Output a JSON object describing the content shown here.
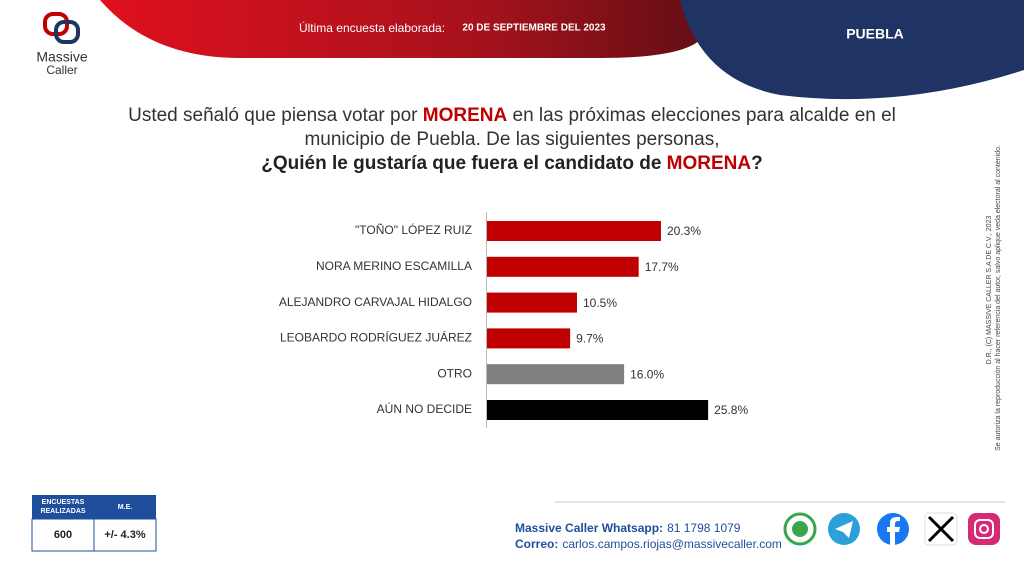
{
  "header": {
    "survey_label": "Última encuesta elaborada:",
    "survey_date": "20 DE SEPTIEMBRE DEL 2023",
    "region": "PUEBLA"
  },
  "logo": {
    "line1": "Massive",
    "line2": "Caller"
  },
  "chart_data": {
    "type": "bar",
    "orientation": "horizontal",
    "title_parts": [
      "Usted señaló que piensa votar por ",
      "MORENA",
      " en las próximas elecciones para alcalde en el",
      "municipio de Puebla.  De las siguientes personas,",
      "¿Quién le gustaría que fuera el candidato de ",
      "MORENA",
      "?"
    ],
    "categories": [
      "\"TOÑO\" LÓPEZ RUIZ",
      "NORA MERINO ESCAMILLA",
      "ALEJANDRO CARVAJAL HIDALGO",
      "LEOBARDO RODRÍGUEZ JUÁREZ",
      "OTRO",
      "AÚN NO DECIDE"
    ],
    "values": [
      20.3,
      17.7,
      10.5,
      9.7,
      16.0,
      25.8
    ],
    "value_labels": [
      "20.3%",
      "17.7%",
      "10.5%",
      "9.7%",
      "16.0%",
      "25.8%"
    ],
    "colors": [
      "#c00000",
      "#c00000",
      "#c00000",
      "#c00000",
      "#7f7f7f",
      "#000000"
    ]
  },
  "copyright": {
    "line1": "D.R., (C) MASSIVE CALLER S.A DE C.V., 2023",
    "line2": "Se autoriza la reproducción al hacer referencia del autor, salvo aplique veda electoral al contenido."
  },
  "sample_table": {
    "headers": [
      "ENCUESTAS REALIZADAS",
      "M.E."
    ],
    "values": [
      600,
      "+/- 4.3%"
    ]
  },
  "contact": {
    "whatsapp_label": "Massive Caller Whatsapp:",
    "whatsapp_number": "81 1798 1079",
    "email_label": "Correo:",
    "email": "carlos.campos.riojas@massivecaller.com"
  }
}
